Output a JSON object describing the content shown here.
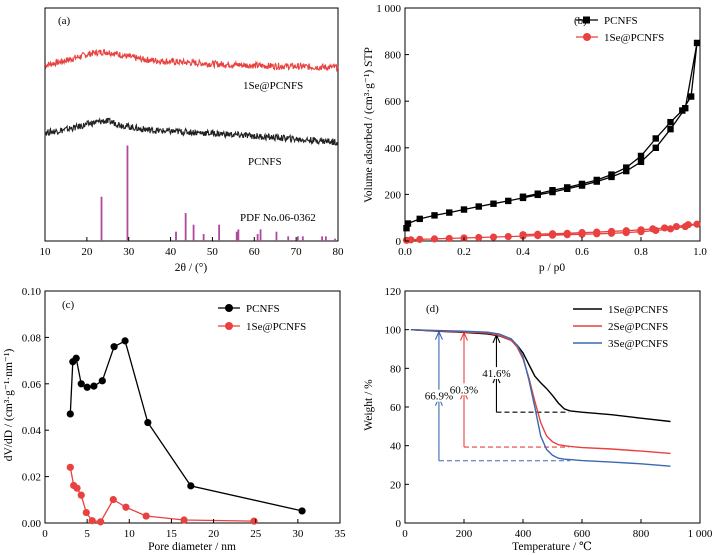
{
  "chart_data": [
    {
      "panel": "(a)",
      "type": "line",
      "xlabel": "2θ / (°)",
      "ylabel": "",
      "xlim": [
        10,
        80
      ],
      "xticks": [
        10,
        20,
        30,
        40,
        50,
        60,
        70,
        80
      ],
      "series": [
        {
          "name": "1Se@PCNFS",
          "color": "#e8413f",
          "x": [
            10,
            14,
            18,
            21,
            24,
            26,
            29,
            33,
            38,
            44,
            50,
            56,
            62,
            68,
            74,
            80
          ],
          "values": [
            0.755,
            0.77,
            0.79,
            0.805,
            0.812,
            0.808,
            0.795,
            0.78,
            0.772,
            0.766,
            0.76,
            0.756,
            0.752,
            0.75,
            0.747,
            0.745
          ]
        },
        {
          "name": "PCNFS",
          "color": "#222222",
          "x": [
            10,
            14,
            18,
            21,
            24,
            26,
            29,
            33,
            38,
            44,
            50,
            56,
            62,
            68,
            74,
            80
          ],
          "values": [
            0.465,
            0.475,
            0.49,
            0.505,
            0.515,
            0.51,
            0.495,
            0.48,
            0.472,
            0.468,
            0.462,
            0.455,
            0.448,
            0.44,
            0.432,
            0.425
          ]
        }
      ],
      "reference": {
        "name": "PDF No.06-0362",
        "color": "#b0489e",
        "peaks": [
          [
            23.5,
            0.19
          ],
          [
            29.7,
            0.41
          ],
          [
            41.3,
            0.04
          ],
          [
            43.6,
            0.12
          ],
          [
            45.5,
            0.07
          ],
          [
            47.9,
            0.03
          ],
          [
            51.6,
            0.07
          ],
          [
            55.8,
            0.04
          ],
          [
            56.2,
            0.05
          ],
          [
            60.8,
            0.03
          ],
          [
            61.5,
            0.05
          ],
          [
            65.3,
            0.04
          ],
          [
            68.1,
            0.02
          ],
          [
            70.4,
            0.02
          ],
          [
            71.6,
            0.02
          ],
          [
            76.2,
            0.02
          ],
          [
            77.1,
            0.02
          ],
          [
            79.3,
            0.01
          ]
        ]
      }
    },
    {
      "panel": "(b)",
      "type": "line",
      "xlabel": "p / p0",
      "ylabel": "Volume adsorbed / (cm³·g⁻¹) STP",
      "xlim": [
        0,
        1.0
      ],
      "ylim": [
        0,
        1000
      ],
      "xticks": [
        "0.0",
        "0.2",
        "0.4",
        "0.6",
        "0.8",
        "1.0"
      ],
      "yticks": [
        "0",
        "200",
        "400",
        "600",
        "800",
        "1 000"
      ],
      "series": [
        {
          "name": "PCNFS",
          "color": "#000000",
          "marker": "square",
          "x": [
            0.005,
            0.01,
            0.05,
            0.1,
            0.15,
            0.2,
            0.25,
            0.3,
            0.35,
            0.4,
            0.45,
            0.5,
            0.55,
            0.6,
            0.65,
            0.7,
            0.75,
            0.8,
            0.85,
            0.9,
            0.95,
            0.99,
            0.97,
            0.94,
            0.9,
            0.85,
            0.8,
            0.75,
            0.7,
            0.65,
            0.6,
            0.55,
            0.5,
            0.45,
            0.4
          ],
          "values": [
            55,
            75,
            95,
            110,
            122,
            135,
            148,
            160,
            172,
            185,
            198,
            210,
            224,
            238,
            255,
            275,
            300,
            340,
            400,
            480,
            570,
            850,
            620,
            560,
            510,
            440,
            365,
            315,
            285,
            262,
            245,
            230,
            218,
            203,
            190
          ]
        },
        {
          "name": "1Se@PCNFS",
          "color": "#e8413f",
          "marker": "circle",
          "x": [
            0.005,
            0.02,
            0.05,
            0.1,
            0.15,
            0.2,
            0.25,
            0.3,
            0.35,
            0.4,
            0.45,
            0.5,
            0.55,
            0.6,
            0.65,
            0.7,
            0.75,
            0.8,
            0.85,
            0.9,
            0.95,
            0.99,
            0.96,
            0.92,
            0.88,
            0.84,
            0.8,
            0.75,
            0.7,
            0.65,
            0.6,
            0.55,
            0.5,
            0.45,
            0.4
          ],
          "values": [
            3,
            5,
            7,
            9,
            11,
            13,
            15,
            17,
            19,
            21,
            23,
            25,
            27,
            29,
            31,
            33,
            36,
            40,
            45,
            52,
            62,
            72,
            70,
            62,
            56,
            52,
            48,
            44,
            41,
            38,
            36,
            33,
            31,
            29,
            27
          ]
        }
      ]
    },
    {
      "panel": "(c)",
      "type": "line",
      "xlabel": "Pore diameter / nm",
      "ylabel": "dV/dD / (cm³·g⁻¹·nm⁻¹)",
      "xlim": [
        0,
        35
      ],
      "ylim": [
        0,
        0.1
      ],
      "xticks": [
        "0",
        "5",
        "10",
        "15",
        "20",
        "25",
        "30",
        "35"
      ],
      "yticks": [
        "0.00",
        "0.02",
        "0.04",
        "0.06",
        "0.08",
        "0.10"
      ],
      "series": [
        {
          "name": "PCNFS",
          "color": "#000000",
          "marker": "circle",
          "x": [
            3.0,
            3.3,
            3.7,
            4.3,
            5.0,
            5.8,
            6.8,
            8.2,
            9.5,
            12.2,
            17.3,
            30.5
          ],
          "values": [
            0.047,
            0.0695,
            0.071,
            0.06,
            0.0585,
            0.059,
            0.0613,
            0.076,
            0.0785,
            0.0433,
            0.016,
            0.0052
          ]
        },
        {
          "name": "1Se@PCNFS",
          "color": "#e8413f",
          "marker": "circle",
          "x": [
            3.0,
            3.4,
            3.8,
            4.3,
            4.9,
            5.6,
            6.6,
            8.1,
            9.6,
            12.0,
            16.5,
            24.8
          ],
          "values": [
            0.024,
            0.0162,
            0.015,
            0.012,
            0.0045,
            0.001,
            0.0005,
            0.0101,
            0.0068,
            0.003,
            0.0013,
            0.0008
          ]
        }
      ]
    },
    {
      "panel": "(d)",
      "type": "line",
      "xlabel": "Temperature / ℃",
      "ylabel": "Weight / %",
      "xlim": [
        0,
        1000
      ],
      "ylim": [
        0,
        120
      ],
      "xticks": [
        "0",
        "200",
        "400",
        "600",
        "800",
        "1 000"
      ],
      "yticks": [
        "0",
        "20",
        "40",
        "60",
        "80",
        "100",
        "120"
      ],
      "series": [
        {
          "name": "1Se@PCNFS",
          "color": "#000000",
          "x": [
            20,
            100,
            200,
            280,
            320,
            360,
            380,
            400,
            420,
            440,
            460,
            480,
            500,
            520,
            540,
            560,
            600,
            700,
            800,
            900
          ],
          "values": [
            100,
            99.3,
            98.6,
            97.8,
            96.8,
            94.5,
            92,
            88,
            82,
            76,
            72.5,
            69.5,
            66,
            62,
            59,
            58,
            57.3,
            56,
            54.2,
            52.5
          ]
        },
        {
          "name": "2Se@PCNFS",
          "color": "#e8413f",
          "x": [
            20,
            100,
            200,
            280,
            320,
            360,
            380,
            400,
            420,
            440,
            460,
            480,
            500,
            520,
            540,
            560,
            600,
            700,
            800,
            900
          ],
          "values": [
            100,
            99.4,
            98.8,
            98.2,
            97,
            94.5,
            91,
            85,
            75,
            63,
            52,
            45,
            42,
            40.5,
            40,
            39.6,
            39,
            38.3,
            37.2,
            36
          ]
        },
        {
          "name": "3Se@PCNFS",
          "color": "#3a69b0",
          "x": [
            20,
            100,
            200,
            280,
            320,
            360,
            380,
            400,
            420,
            440,
            460,
            480,
            500,
            520,
            540,
            560,
            600,
            700,
            800,
            900
          ],
          "values": [
            100,
            99.6,
            99.2,
            98.7,
            97.7,
            95.2,
            92,
            86,
            74,
            60,
            45,
            38,
            35,
            33.5,
            33,
            32.8,
            32.3,
            31.5,
            30.6,
            29.4
          ]
        }
      ],
      "annotations": [
        {
          "text": "66.9%",
          "color": "#3a69b0",
          "x": 115,
          "y_top": 99.5,
          "y_bottom": 32.2
        },
        {
          "text": "60.3%",
          "color": "#e8413f",
          "x": 200,
          "y_top": 99,
          "y_bottom": 39.3
        },
        {
          "text": "41.6%",
          "color": "#000000",
          "x": 310,
          "y_top": 97.8,
          "y_bottom": 57.3
        }
      ]
    }
  ]
}
